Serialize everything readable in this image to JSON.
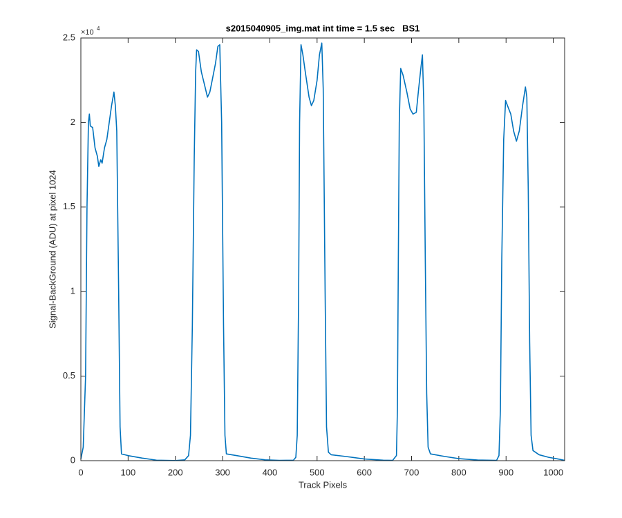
{
  "chart_data": {
    "type": "line",
    "title": "s2015040905_img.mat int time = 1.5 sec   BS1",
    "x_label": "Track Pixels",
    "y_label": "Signal-BackGround (ADU) at pixel 1024",
    "y_multiplier": {
      "base": "×10",
      "exponent": "4"
    },
    "xlim": [
      0,
      1024
    ],
    "xticks": [
      0,
      100,
      200,
      300,
      400,
      500,
      600,
      700,
      800,
      900,
      1000
    ],
    "ylim": [
      0,
      25000
    ],
    "yticks": [
      {
        "value": 0,
        "label": "0"
      },
      {
        "value": 5000,
        "label": "0.5"
      },
      {
        "value": 10000,
        "label": "1"
      },
      {
        "value": 15000,
        "label": "1.5"
      },
      {
        "value": 20000,
        "label": "2"
      },
      {
        "value": 25000,
        "label": "2.5"
      }
    ],
    "grid": false,
    "x": [
      0,
      5,
      10,
      13,
      16,
      18,
      20,
      25,
      30,
      35,
      38,
      42,
      45,
      50,
      55,
      60,
      65,
      70,
      73,
      76,
      80,
      83,
      86,
      100,
      130,
      160,
      200,
      220,
      228,
      232,
      236,
      240,
      243,
      245,
      249,
      255,
      262,
      268,
      273,
      278,
      285,
      290,
      294,
      298,
      302,
      305,
      308,
      330,
      360,
      390,
      420,
      450,
      455,
      458,
      461,
      463,
      466,
      470,
      475,
      483,
      488,
      493,
      500,
      505,
      510,
      513,
      517,
      520,
      524,
      530,
      560,
      600,
      640,
      660,
      668,
      670,
      672,
      674,
      677,
      682,
      690,
      697,
      703,
      710,
      715,
      720,
      723,
      726,
      729,
      732,
      735,
      740,
      770,
      800,
      840,
      880,
      885,
      888,
      891,
      895,
      899,
      903,
      910,
      916,
      922,
      928,
      935,
      941,
      944,
      947,
      950,
      953,
      957,
      970,
      990,
      1010,
      1024
    ],
    "series": [
      {
        "name": "BS1",
        "color": "#0072bd",
        "values": [
          100,
          800,
          5000,
          15000,
          20000,
          20500,
          19800,
          19700,
          18500,
          18000,
          17400,
          17800,
          17600,
          18500,
          19000,
          20000,
          21000,
          21800,
          21000,
          19500,
          10000,
          2000,
          400,
          300,
          150,
          30,
          10,
          50,
          300,
          1500,
          8000,
          18000,
          23000,
          24300,
          24200,
          23000,
          22200,
          21500,
          21800,
          22500,
          23500,
          24500,
          24600,
          20000,
          8000,
          1500,
          400,
          300,
          150,
          50,
          20,
          30,
          200,
          1500,
          10000,
          20000,
          24600,
          24000,
          23000,
          21500,
          21000,
          21300,
          22500,
          24000,
          24700,
          22000,
          10000,
          2000,
          500,
          350,
          250,
          100,
          30,
          20,
          300,
          3000,
          12000,
          20000,
          23200,
          22800,
          21800,
          20800,
          20500,
          20600,
          22000,
          23300,
          24000,
          21000,
          12000,
          4000,
          800,
          400,
          250,
          120,
          40,
          20,
          300,
          3000,
          12000,
          19000,
          21300,
          21000,
          20500,
          19500,
          18900,
          19500,
          21000,
          22100,
          21500,
          16000,
          7000,
          1500,
          600,
          350,
          200,
          100,
          20
        ]
      }
    ]
  }
}
